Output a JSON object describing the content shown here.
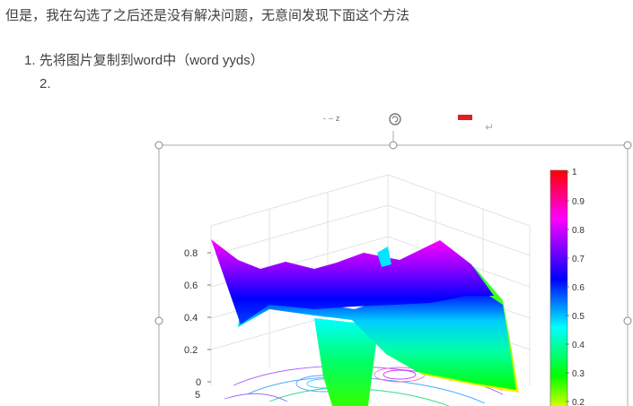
{
  "post": {
    "intro_text": "但是，我在勾选了之后还是没有解决问题，无意间发现下面这个方法",
    "steps": [
      {
        "number": "1.",
        "text": "先将图片复制到word中（word yyds）"
      },
      {
        "number": "2.",
        "text": ""
      }
    ]
  },
  "image_toolbar": {
    "residue_text": "- ⌣ z",
    "arrow_glyph": "↵"
  },
  "chart_data": {
    "type": "surface3d",
    "z_ticks": [
      "0.8",
      "0.6",
      "0.4",
      "0.2",
      "0"
    ],
    "y_edge_tick": "5",
    "colorbar": {
      "ticks": [
        "1",
        "0.9",
        "0.8",
        "0.7",
        "0.6",
        "0.5",
        "0.4",
        "0.3",
        "0.2"
      ],
      "colormap": [
        "#ff0000",
        "#ff00ff",
        "#0000ff",
        "#00ffff",
        "#00ff00",
        "#ffff00"
      ]
    }
  }
}
